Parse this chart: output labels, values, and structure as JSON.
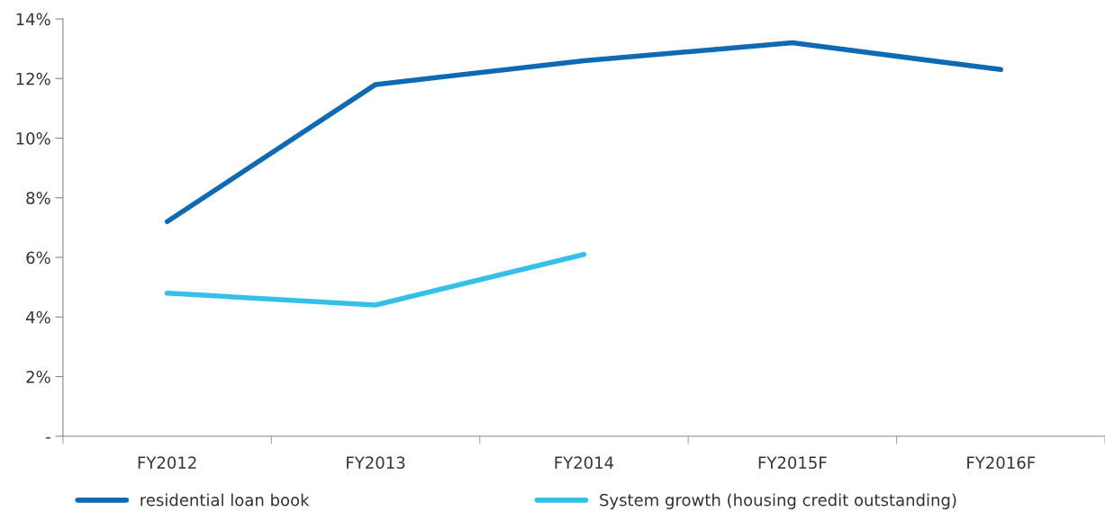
{
  "chart_data": {
    "type": "line",
    "categories": [
      "FY2012",
      "FY2013",
      "FY2014",
      "FY2015F",
      "FY2016F"
    ],
    "series": [
      {
        "name": "residential loan book",
        "color": "#0f6ab4",
        "values": [
          7.2,
          11.8,
          12.6,
          13.2,
          12.3
        ]
      },
      {
        "name": "System growth (housing credit outstanding)",
        "color": "#35c0ea",
        "values": [
          4.8,
          4.4,
          6.1,
          null,
          null
        ]
      }
    ],
    "ylim": [
      0,
      14
    ],
    "yticks": [
      {
        "value": 0,
        "label": "-"
      },
      {
        "value": 2,
        "label": "2%"
      },
      {
        "value": 4,
        "label": "4%"
      },
      {
        "value": 6,
        "label": "6%"
      },
      {
        "value": 8,
        "label": "8%"
      },
      {
        "value": 10,
        "label": "10%"
      },
      {
        "value": 12,
        "label": "12%"
      },
      {
        "value": 14,
        "label": "14%"
      }
    ],
    "grid": false,
    "legend": "bottom",
    "marker": "none",
    "line_style": "solid"
  }
}
